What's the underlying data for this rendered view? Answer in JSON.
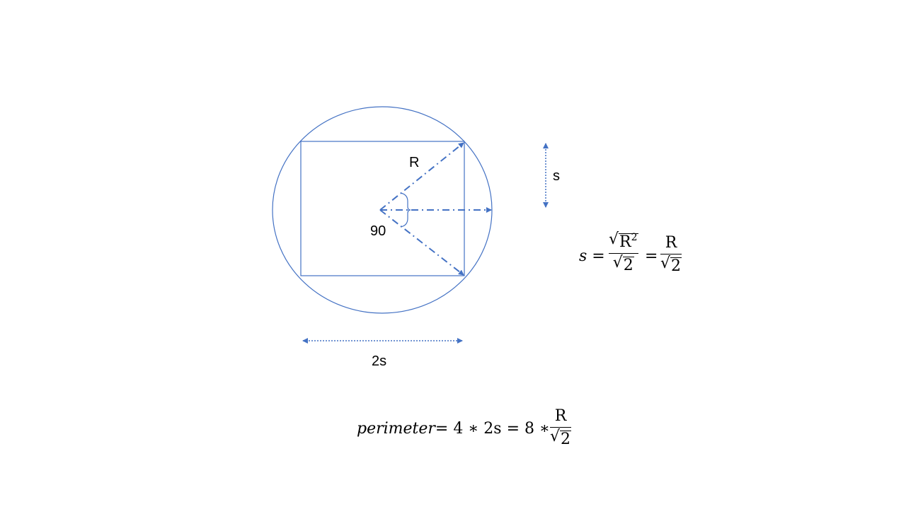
{
  "labels": {
    "radius": "R",
    "side": "s",
    "angle": "90",
    "width": "2s"
  },
  "equations": {
    "side": {
      "lhs": "s",
      "eq": "=",
      "frac1_num_var": "R",
      "frac1_num_exp": "2",
      "frac1_den": "2",
      "frac2_num": "R",
      "frac2_den": "2"
    },
    "perimeter": {
      "text": "perimeter",
      "eq1": "= 4 ",
      "times1": "∗",
      "term": " 2s = 8 ∗ ",
      "frac_num": "R",
      "frac_den": "2"
    }
  },
  "colors": {
    "stroke": "#4472C4",
    "text": "#000000"
  }
}
